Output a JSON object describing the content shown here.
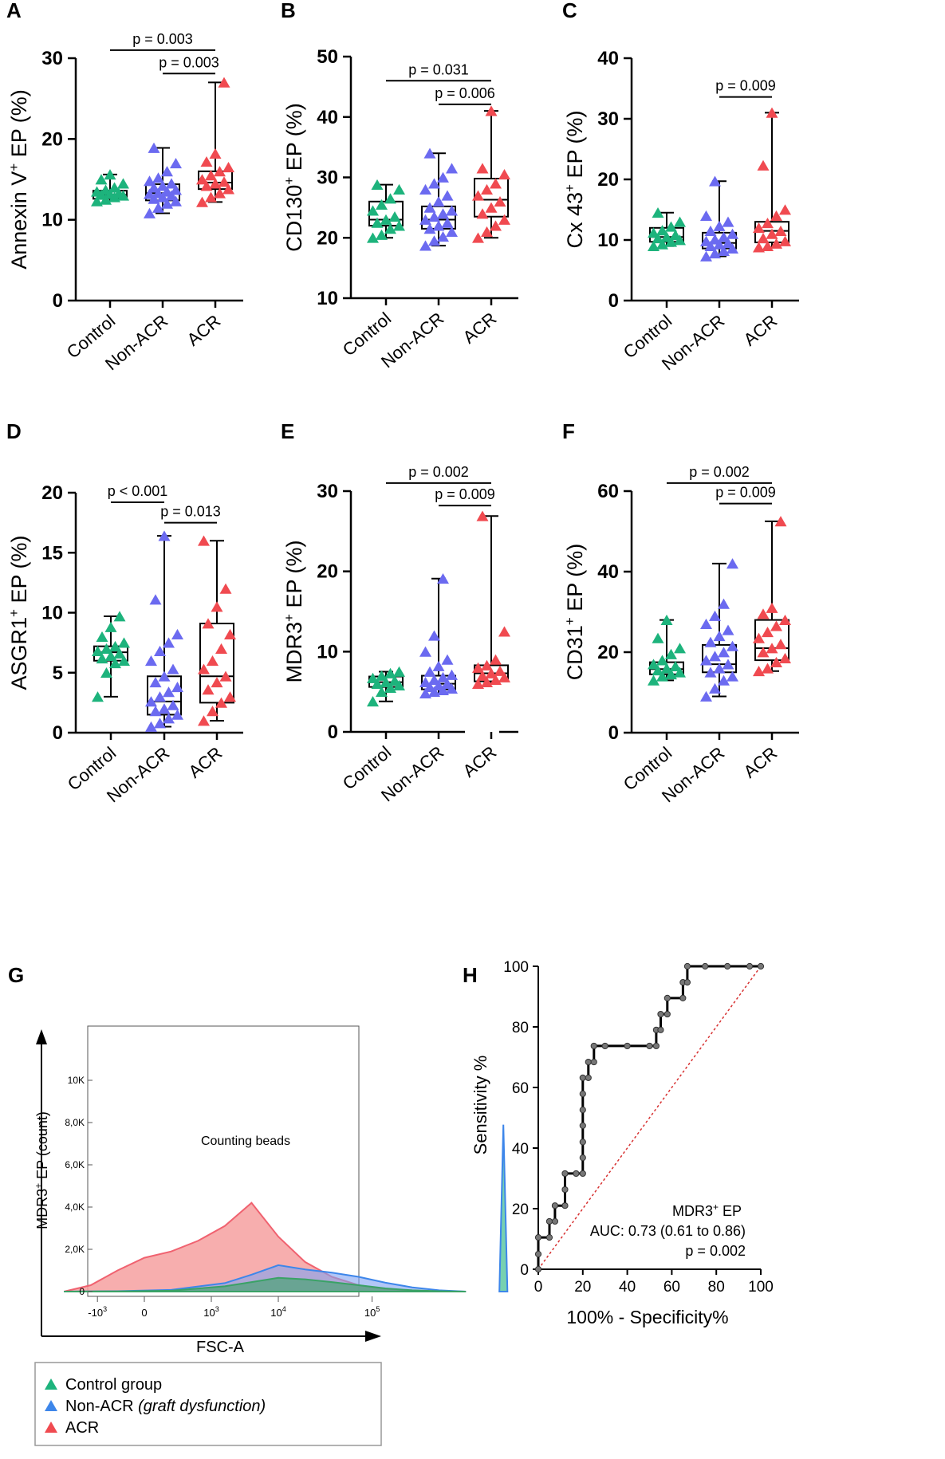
{
  "colors": {
    "control": "#1db37c",
    "nonacr": "#6b6af0",
    "acr": "#f04a50",
    "control_fill": "#3aa266",
    "nonacr_fill": "#7ea1f2",
    "acr_fill": "#f6a0a0",
    "nonacr_line": "#3d86ea",
    "acr_line": "#f06270",
    "roc_marker": "#777777",
    "diagonal": "#d73030"
  },
  "chart_data": [
    {
      "panel": "A",
      "type": "boxplot",
      "ylabel_main": "Annexin V",
      "ylabel_sup": "+",
      "ylabel_rest": " EP (%)",
      "ylim": [
        0,
        30
      ],
      "yticks": [
        "0",
        "10",
        "20",
        "30"
      ],
      "categories": [
        "Control",
        "Non-ACR",
        "ACR"
      ],
      "series": [
        {
          "name": "Control",
          "min": 12.3,
          "q1": 12.6,
          "median": 13.1,
          "q3": 13.6,
          "max": 15.6
        },
        {
          "name": "Non-ACR",
          "min": 10.8,
          "q1": 12.4,
          "median": 13.3,
          "q3": 14.4,
          "max": 18.9
        },
        {
          "name": "ACR",
          "min": 12.2,
          "q1": 13.8,
          "median": 14.6,
          "q3": 16.0,
          "max": 27.0
        }
      ],
      "points": [
        [
          12.3,
          12.5,
          12.8,
          13.0,
          13.1,
          13.2,
          13.3,
          13.5,
          13.7,
          14.0,
          14.5,
          15.0,
          15.6
        ],
        [
          10.8,
          11.5,
          12.0,
          12.3,
          12.6,
          12.8,
          13.0,
          13.2,
          13.3,
          13.5,
          13.7,
          14.0,
          14.2,
          14.5,
          14.8,
          15.2,
          16.0,
          17.0,
          18.9
        ],
        [
          12.2,
          12.8,
          13.3,
          13.8,
          14.2,
          14.5,
          14.7,
          15.0,
          15.5,
          16.0,
          16.5,
          17.2,
          18.2,
          27.0
        ]
      ],
      "comparisons": [
        {
          "label": "p = 0.003",
          "from": 0,
          "to": 2,
          "y": 31
        },
        {
          "label": "p = 0.003",
          "from": 1,
          "to": 2,
          "y": 28.1
        }
      ]
    },
    {
      "panel": "B",
      "type": "boxplot",
      "ylabel_main": "CD130",
      "ylabel_sup": "+",
      "ylabel_rest": " EP (%)",
      "ylim": [
        10,
        50
      ],
      "yticks": [
        "10",
        "20",
        "30",
        "40",
        "50"
      ],
      "categories": [
        "Control",
        "Non-ACR",
        "ACR"
      ],
      "series": [
        {
          "name": "Control",
          "min": 20.0,
          "q1": 22.0,
          "median": 23.0,
          "q3": 26.0,
          "max": 28.8
        },
        {
          "name": "Non-ACR",
          "min": 18.7,
          "q1": 21.5,
          "median": 23.0,
          "q3": 25.2,
          "max": 34.0
        },
        {
          "name": "ACR",
          "min": 20.0,
          "q1": 23.5,
          "median": 26.3,
          "q3": 29.8,
          "max": 41.0
        }
      ],
      "points": [
        [
          20.0,
          20.5,
          21.5,
          22.0,
          22.5,
          23.0,
          23.5,
          24.5,
          25.5,
          26.5,
          28.0,
          28.8
        ],
        [
          18.7,
          19.5,
          20.2,
          21.0,
          21.5,
          22.0,
          22.5,
          23.0,
          23.5,
          24.0,
          24.5,
          25.0,
          26.0,
          27.0,
          28.0,
          29.0,
          30.0,
          31.5,
          34.0
        ],
        [
          20.0,
          21.0,
          22.0,
          23.0,
          24.0,
          25.0,
          26.0,
          27.0,
          28.0,
          29.0,
          30.5,
          31.5,
          41.0
        ]
      ],
      "comparisons": [
        {
          "label": "p = 0.031",
          "from": 0,
          "to": 2,
          "y": 46
        },
        {
          "label": "p = 0.006",
          "from": 1,
          "to": 2,
          "y": 42.1
        }
      ]
    },
    {
      "panel": "C",
      "type": "boxplot",
      "ylabel_main": "Cx 43",
      "ylabel_sup": "+",
      "ylabel_rest": " EP (%)",
      "ylim": [
        0,
        40
      ],
      "yticks": [
        "0",
        "10",
        "20",
        "30",
        "40"
      ],
      "categories": [
        "Control",
        "Non-ACR",
        "ACR"
      ],
      "series": [
        {
          "name": "Control",
          "min": 9.0,
          "q1": 9.7,
          "median": 10.5,
          "q3": 12.0,
          "max": 14.5
        },
        {
          "name": "Non-ACR",
          "min": 7.3,
          "q1": 8.6,
          "median": 9.5,
          "q3": 11.2,
          "max": 19.7
        },
        {
          "name": "ACR",
          "min": 8.8,
          "q1": 9.6,
          "median": 11.5,
          "q3": 13.0,
          "max": 31.0
        }
      ],
      "points": [
        [
          9.0,
          9.3,
          9.7,
          10.0,
          10.3,
          10.5,
          10.8,
          11.2,
          11.6,
          12.2,
          13.0,
          14.5
        ],
        [
          7.3,
          7.8,
          8.2,
          8.6,
          9.0,
          9.3,
          9.5,
          9.8,
          10.1,
          10.5,
          11.0,
          11.5,
          12.3,
          13.0,
          14.0,
          19.7
        ],
        [
          8.8,
          9.0,
          9.4,
          9.8,
          10.3,
          11.0,
          11.5,
          12.0,
          12.8,
          14.0,
          15.0,
          22.3,
          31.0
        ]
      ],
      "comparisons": [
        {
          "label": "p = 0.009",
          "from": 1,
          "to": 2,
          "y": 33.6
        }
      ]
    },
    {
      "panel": "D",
      "type": "boxplot",
      "ylabel_main": "ASGR1",
      "ylabel_sup": "+",
      "ylabel_rest": " EP (%)",
      "ylim": [
        0,
        20
      ],
      "yticks": [
        "0",
        "5",
        "10",
        "15",
        "20"
      ],
      "categories": [
        "Control",
        "Non-ACR",
        "ACR"
      ],
      "series": [
        {
          "name": "Control",
          "min": 3.0,
          "q1": 6.0,
          "median": 6.7,
          "q3": 7.2,
          "max": 9.7
        },
        {
          "name": "Non-ACR",
          "min": 0.5,
          "q1": 1.5,
          "median": 2.6,
          "q3": 4.7,
          "max": 16.4
        },
        {
          "name": "ACR",
          "min": 1.0,
          "q1": 2.5,
          "median": 4.7,
          "q3": 9.1,
          "max": 16.0
        }
      ],
      "points": [
        [
          3.0,
          5.0,
          5.8,
          6.0,
          6.2,
          6.4,
          6.6,
          6.8,
          7.0,
          7.2,
          7.5,
          8.0,
          8.8,
          9.7
        ],
        [
          0.5,
          0.8,
          1.2,
          1.5,
          1.8,
          2.0,
          2.3,
          2.6,
          3.0,
          3.4,
          3.8,
          4.2,
          4.7,
          5.3,
          6.0,
          6.8,
          7.5,
          8.2,
          11.1,
          16.4
        ],
        [
          1.0,
          1.8,
          2.5,
          3.0,
          3.6,
          4.2,
          4.7,
          5.3,
          6.0,
          7.0,
          8.2,
          9.1,
          10.5,
          12.0,
          16.0
        ]
      ],
      "comparisons": [
        {
          "label": "p < 0.001",
          "from": 0,
          "to": 1,
          "y": 19.2
        },
        {
          "label": "p = 0.013",
          "from": 1,
          "to": 2,
          "y": 17.5
        }
      ]
    },
    {
      "panel": "E",
      "type": "boxplot",
      "ylabel_main": "MDR3",
      "ylabel_sup": "+",
      "ylabel_rest": " EP (%)",
      "ylim": [
        0,
        30
      ],
      "yticks": [
        "0",
        "10",
        "20",
        "30"
      ],
      "categories": [
        "Control",
        "Non-ACR",
        "ACR"
      ],
      "series": [
        {
          "name": "Control",
          "min": 3.8,
          "q1": 5.6,
          "median": 6.2,
          "q3": 6.9,
          "max": 7.5
        },
        {
          "name": "Non-ACR",
          "min": 4.8,
          "q1": 5.3,
          "median": 6.0,
          "q3": 7.0,
          "max": 19.1
        },
        {
          "name": "ACR",
          "min": 6.0,
          "q1": 6.3,
          "median": 7.3,
          "q3": 8.3,
          "max": 26.9
        }
      ],
      "points": [
        [
          3.8,
          5.0,
          5.5,
          5.8,
          6.0,
          6.2,
          6.4,
          6.7,
          7.0,
          7.3,
          7.5
        ],
        [
          4.8,
          5.0,
          5.2,
          5.4,
          5.6,
          5.8,
          6.0,
          6.2,
          6.5,
          6.8,
          7.1,
          7.5,
          8.2,
          9.0,
          10.0,
          12.0,
          19.1
        ],
        [
          6.0,
          6.2,
          6.5,
          6.8,
          7.0,
          7.3,
          7.6,
          8.0,
          8.3,
          9.0,
          12.5,
          26.9
        ]
      ],
      "comparisons": [
        {
          "label": "p = 0.002",
          "from": 0,
          "to": 2,
          "y": 31
        },
        {
          "label": "p = 0.009",
          "from": 1,
          "to": 2,
          "y": 28.2
        }
      ]
    },
    {
      "panel": "F",
      "type": "boxplot",
      "ylabel_main": "CD31",
      "ylabel_sup": "+",
      "ylabel_rest": " EP (%)",
      "ylim": [
        0,
        60
      ],
      "yticks": [
        "0",
        "20",
        "40",
        "60"
      ],
      "categories": [
        "Control",
        "Non-ACR",
        "ACR"
      ],
      "series": [
        {
          "name": "Control",
          "min": 13.0,
          "q1": 14.5,
          "median": 15.8,
          "q3": 17.5,
          "max": 28.0
        },
        {
          "name": "Non-ACR",
          "min": 9.0,
          "q1": 15.0,
          "median": 17.0,
          "q3": 21.8,
          "max": 42.0
        },
        {
          "name": "ACR",
          "min": 15.3,
          "q1": 18.0,
          "median": 21.0,
          "q3": 28.0,
          "max": 52.5
        }
      ],
      "points": [
        [
          13.0,
          14.0,
          14.5,
          15.0,
          15.5,
          16.0,
          16.5,
          17.0,
          18.0,
          19.5,
          21.0,
          23.5,
          28.0
        ],
        [
          9.0,
          11.0,
          13.0,
          14.0,
          15.0,
          16.0,
          17.0,
          18.0,
          19.0,
          20.0,
          21.5,
          22.5,
          24.0,
          25.5,
          27.0,
          29.0,
          32.0,
          42.0
        ],
        [
          15.3,
          16.0,
          17.5,
          18.5,
          20.0,
          21.0,
          22.0,
          23.5,
          25.0,
          26.5,
          28.0,
          29.5,
          31.0,
          52.5
        ]
      ],
      "comparisons": [
        {
          "label": "p = 0.002",
          "from": 0,
          "to": 2,
          "y": 62
        },
        {
          "label": "p = 0.009",
          "from": 1,
          "to": 2,
          "y": 56.9
        }
      ]
    },
    {
      "panel": "G",
      "type": "area",
      "xlabel": "FSC-A",
      "ylabel_main": "MDR3",
      "ylabel_sup": "+",
      "ylabel_rest": " EP (count)",
      "yticks": [
        "0",
        "2,0K",
        "4,0K",
        "6,0K",
        "8,0K",
        "10K"
      ],
      "y_values": [
        0,
        2000,
        4000,
        6000,
        8000,
        10000
      ],
      "xticks": [
        {
          "base": "-10",
          "exp": "3"
        },
        {
          "base": "0",
          "exp": ""
        },
        {
          "base": "10",
          "exp": "3"
        },
        {
          "base": "10",
          "exp": "4"
        },
        {
          "base": "10",
          "exp": "5"
        }
      ],
      "annotation": "Counting beads",
      "series": [
        {
          "name": "ACR",
          "x": [
            -1.2,
            -0.8,
            -0.4,
            0.0,
            0.4,
            0.8,
            1.2,
            1.6,
            2.0,
            2.4,
            2.8,
            3.2,
            3.6,
            4.0,
            4.4,
            4.8
          ],
          "y": [
            0,
            300,
            1000,
            1600,
            1900,
            2400,
            3100,
            4200,
            2600,
            1400,
            700,
            300,
            120,
            40,
            10,
            0
          ]
        },
        {
          "name": "Non-ACR",
          "x": [
            -1.2,
            -0.4,
            0.4,
            1.2,
            1.6,
            2.0,
            2.4,
            2.8,
            3.2,
            3.6,
            4.0,
            4.4,
            4.8
          ],
          "y": [
            0,
            20,
            80,
            400,
            800,
            1250,
            1050,
            900,
            700,
            420,
            200,
            60,
            0
          ]
        },
        {
          "name": "Control",
          "x": [
            -1.2,
            -0.4,
            0.4,
            1.2,
            1.6,
            2.0,
            2.4,
            2.8,
            3.2,
            3.6,
            4.0,
            4.4,
            4.8
          ],
          "y": [
            0,
            10,
            40,
            250,
            450,
            650,
            580,
            450,
            300,
            150,
            60,
            20,
            0
          ]
        },
        {
          "name": "Counting beads",
          "x": [
            5.3,
            5.36,
            5.42
          ],
          "y": [
            0,
            7900,
            0
          ]
        }
      ]
    },
    {
      "panel": "H",
      "type": "line",
      "xlabel": "100% - Specificity%",
      "ylabel": "Sensitivity %",
      "xlim": [
        0,
        100
      ],
      "ylim": [
        0,
        100
      ],
      "xticks": [
        "0",
        "20",
        "40",
        "60",
        "80",
        "100"
      ],
      "yticks": [
        "0",
        "20",
        "40",
        "60",
        "80",
        "100"
      ],
      "roc": [
        [
          0,
          0
        ],
        [
          0,
          5
        ],
        [
          0,
          10.5
        ],
        [
          5,
          10.5
        ],
        [
          5,
          15.8
        ],
        [
          7.5,
          15.8
        ],
        [
          7.5,
          21
        ],
        [
          12,
          21
        ],
        [
          12,
          26.3
        ],
        [
          12,
          31.6
        ],
        [
          17,
          31.6
        ],
        [
          20,
          31.6
        ],
        [
          20,
          36.8
        ],
        [
          20,
          42
        ],
        [
          20,
          47.4
        ],
        [
          20,
          52.6
        ],
        [
          20,
          57.9
        ],
        [
          20,
          63.2
        ],
        [
          22.5,
          63.2
        ],
        [
          22.5,
          68.4
        ],
        [
          25,
          68.4
        ],
        [
          25,
          73.7
        ],
        [
          30,
          73.7
        ],
        [
          40,
          73.7
        ],
        [
          50,
          73.7
        ],
        [
          53,
          73.7
        ],
        [
          53,
          79
        ],
        [
          55,
          79
        ],
        [
          55,
          84.2
        ],
        [
          58,
          84.2
        ],
        [
          58,
          89.5
        ],
        [
          65,
          89.5
        ],
        [
          65,
          94.7
        ],
        [
          67,
          94.7
        ],
        [
          67,
          100
        ],
        [
          75,
          100
        ],
        [
          85,
          100
        ],
        [
          95,
          100
        ],
        [
          100,
          100
        ]
      ],
      "annotation_main": "MDR3",
      "annotation_sup": "+",
      "annotation_rest": " EP",
      "auc_label": "AUC: 0.73 (0.61 to 0.86)",
      "p_label": "p = 0.002"
    }
  ],
  "legend": {
    "items": [
      {
        "label": "Control group",
        "note": ""
      },
      {
        "label": "Non-ACR ",
        "note": "(graft dysfunction)"
      },
      {
        "label": "ACR",
        "note": ""
      }
    ]
  }
}
